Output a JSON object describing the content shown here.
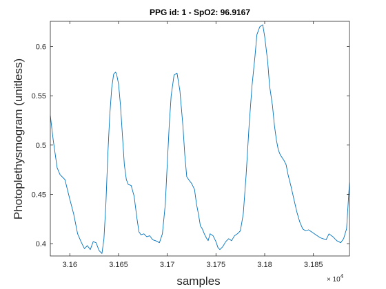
{
  "chart_data": {
    "type": "line",
    "title": "PPG id: 1 - SpO2: 96.9167",
    "xlabel": "samples",
    "ylabel": "Photoplethysmogram (unitless)",
    "x_exponent_label": "× 10",
    "x_exponent_power": "4",
    "xlim": [
      31580,
      31887
    ],
    "ylim": [
      0.3875,
      0.6255
    ],
    "x_ticks": [
      31600,
      31650,
      31700,
      31750,
      31800,
      31850
    ],
    "x_tick_labels": [
      "3.16",
      "3.165",
      "3.17",
      "3.175",
      "3.18",
      "3.185"
    ],
    "y_ticks": [
      0.4,
      0.45,
      0.5,
      0.55,
      0.6
    ],
    "y_tick_labels": [
      "0.4",
      "0.45",
      "0.5",
      "0.55",
      "0.6"
    ],
    "grid": false,
    "line_color": "#0072BD",
    "series": [
      {
        "x": [
          31580,
          31583,
          31587,
          31590,
          31595,
          31600,
          31604,
          31608,
          31612,
          31615,
          31618,
          31621,
          31624,
          31627,
          31630,
          31633,
          31635,
          31637,
          31639,
          31641,
          31643,
          31645,
          31647,
          31648,
          31650,
          31652,
          31654,
          31656,
          31658,
          31660,
          31663,
          31666,
          31669,
          31671,
          31673,
          31676,
          31679,
          31682,
          31685,
          31688,
          31692,
          31695,
          31698,
          31700,
          31702,
          31704,
          31707,
          31710,
          31713,
          31716,
          31718,
          31720,
          31722,
          31725,
          31728,
          31730,
          31732,
          31734,
          31736,
          31738,
          31740,
          31742,
          31744,
          31747,
          31750,
          31752,
          31754,
          31757,
          31760,
          31763,
          31766,
          31769,
          31772,
          31775,
          31778,
          31781,
          31784,
          31787,
          31790,
          31792,
          31795,
          31798,
          31800,
          31803,
          31805,
          31808,
          31810,
          31812,
          31814,
          31816,
          31818,
          31820,
          31822,
          31824,
          31827,
          31830,
          31833,
          31836,
          31839,
          31842,
          31845,
          31848,
          31851,
          31854,
          31857,
          31860,
          31863,
          31866,
          31870,
          31874,
          31878,
          31881,
          31884,
          31887
        ],
        "y": [
          0.53,
          0.505,
          0.477,
          0.47,
          0.465,
          0.445,
          0.43,
          0.41,
          0.401,
          0.395,
          0.398,
          0.394,
          0.402,
          0.401,
          0.393,
          0.39,
          0.405,
          0.44,
          0.49,
          0.53,
          0.558,
          0.572,
          0.574,
          0.572,
          0.562,
          0.54,
          0.51,
          0.48,
          0.465,
          0.46,
          0.459,
          0.448,
          0.425,
          0.412,
          0.409,
          0.41,
          0.407,
          0.408,
          0.404,
          0.403,
          0.401,
          0.41,
          0.44,
          0.48,
          0.52,
          0.55,
          0.571,
          0.573,
          0.555,
          0.52,
          0.49,
          0.468,
          0.465,
          0.461,
          0.455,
          0.44,
          0.43,
          0.418,
          0.415,
          0.41,
          0.406,
          0.403,
          0.41,
          0.408,
          0.402,
          0.396,
          0.394,
          0.397,
          0.402,
          0.405,
          0.403,
          0.408,
          0.41,
          0.413,
          0.43,
          0.47,
          0.52,
          0.56,
          0.59,
          0.612,
          0.62,
          0.622,
          0.61,
          0.585,
          0.56,
          0.54,
          0.52,
          0.505,
          0.495,
          0.49,
          0.487,
          0.484,
          0.48,
          0.47,
          0.458,
          0.445,
          0.432,
          0.422,
          0.415,
          0.413,
          0.414,
          0.412,
          0.41,
          0.408,
          0.406,
          0.405,
          0.404,
          0.41,
          0.407,
          0.403,
          0.401,
          0.405,
          0.415,
          0.462
        ]
      }
    ]
  }
}
